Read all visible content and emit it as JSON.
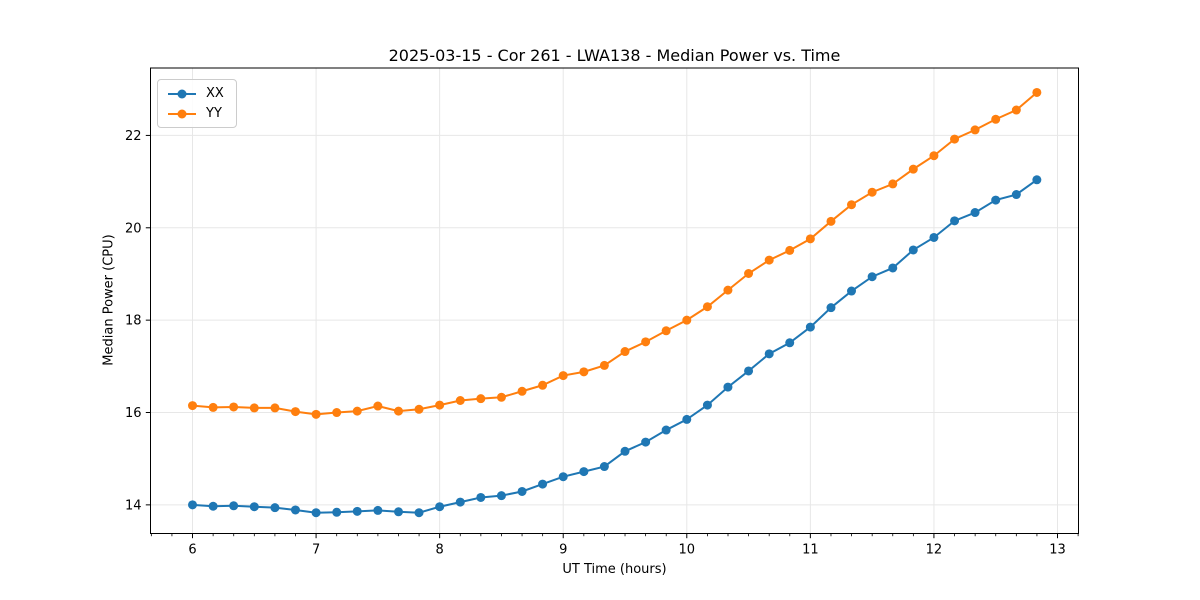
{
  "chart_data": {
    "type": "line",
    "title": "2025-03-15 - Cor 261 - LWA138 - Median Power vs. Time",
    "xlabel": "UT Time (hours)",
    "ylabel": "Median Power (CPU)",
    "xlim": [
      5.66,
      13.17
    ],
    "ylim": [
      13.38,
      23.46
    ],
    "xticks": [
      6,
      7,
      8,
      9,
      10,
      11,
      12,
      13
    ],
    "yticks": [
      14,
      16,
      18,
      20,
      22
    ],
    "xtick_minor_step": 0.16667,
    "grid": true,
    "grid_color": "#e7e7e7",
    "spine_color": "#000000",
    "legend_position": "upper left",
    "marker": "circle",
    "x": [
      6.0,
      6.167,
      6.333,
      6.5,
      6.667,
      6.833,
      7.0,
      7.167,
      7.333,
      7.5,
      7.667,
      7.833,
      8.0,
      8.167,
      8.333,
      8.5,
      8.667,
      8.833,
      9.0,
      9.167,
      9.333,
      9.5,
      9.667,
      9.833,
      10.0,
      10.167,
      10.333,
      10.5,
      10.667,
      10.833,
      11.0,
      11.167,
      11.333,
      11.5,
      11.667,
      11.833,
      12.0,
      12.167,
      12.333,
      12.5,
      12.667,
      12.833
    ],
    "series": [
      {
        "name": "XX",
        "color": "#1f77b4",
        "values": [
          14.0,
          13.97,
          13.98,
          13.96,
          13.94,
          13.89,
          13.83,
          13.84,
          13.86,
          13.88,
          13.85,
          13.83,
          13.96,
          14.06,
          14.16,
          14.2,
          14.29,
          14.45,
          14.61,
          14.72,
          14.83,
          15.16,
          15.36,
          15.62,
          15.85,
          16.16,
          16.55,
          16.9,
          17.27,
          17.51,
          17.85,
          18.27,
          18.63,
          18.94,
          19.13,
          19.52,
          19.79,
          20.15,
          20.33,
          20.6,
          20.72,
          21.04
        ]
      },
      {
        "name": "YY",
        "color": "#ff7f0e",
        "values": [
          16.15,
          16.11,
          16.12,
          16.1,
          16.1,
          16.02,
          15.96,
          16.0,
          16.03,
          16.14,
          16.03,
          16.07,
          16.16,
          16.26,
          16.3,
          16.33,
          16.46,
          16.59,
          16.8,
          16.88,
          17.02,
          17.32,
          17.53,
          17.77,
          18.0,
          18.29,
          18.65,
          19.01,
          19.3,
          19.51,
          19.76,
          20.14,
          20.5,
          20.77,
          20.95,
          21.27,
          21.56,
          21.92,
          22.12,
          22.35,
          22.55,
          22.93
        ]
      }
    ]
  }
}
